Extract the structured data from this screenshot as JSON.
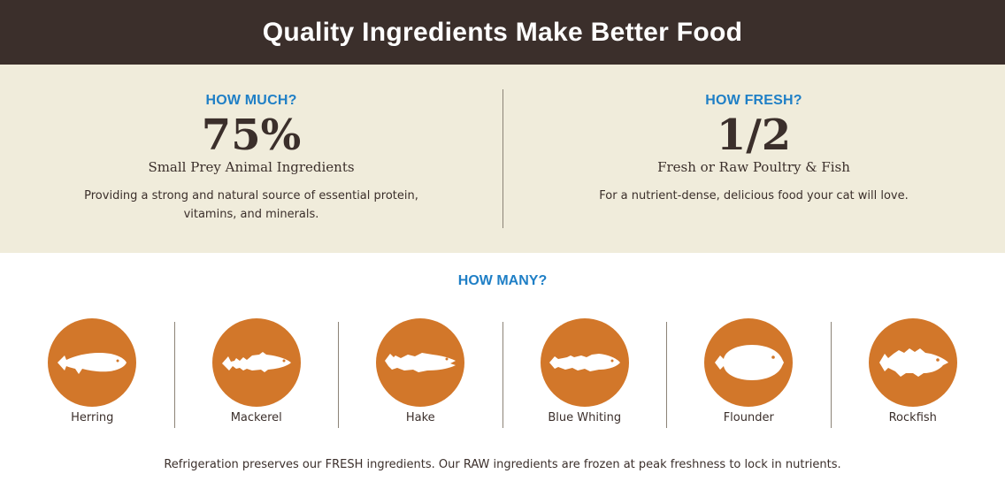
{
  "header": {
    "title": "Quality Ingredients Make Better Food"
  },
  "stats": [
    {
      "question": "HOW MUCH?",
      "value": "75%",
      "subtitle": "Small Prey Animal Ingredients",
      "description": "Providing a strong and natural source of essential protein, vitamins, and minerals."
    },
    {
      "question": "HOW FRESH?",
      "value": "1/2",
      "subtitle": "Fresh or Raw Poultry & Fish",
      "description": "For a nutrient-dense, delicious food your cat will love."
    }
  ],
  "how_many": {
    "question": "HOW MANY?",
    "fish": [
      {
        "name": "Herring",
        "icon": "herring-icon"
      },
      {
        "name": "Mackerel",
        "icon": "mackerel-icon"
      },
      {
        "name": "Hake",
        "icon": "hake-icon"
      },
      {
        "name": "Blue Whiting",
        "icon": "blue-whiting-icon"
      },
      {
        "name": "Flounder",
        "icon": "flounder-icon"
      },
      {
        "name": "Rockfish",
        "icon": "rockfish-icon"
      }
    ]
  },
  "footer": {
    "note": "Refrigeration preserves our FRESH ingredients. Our RAW ingredients are frozen at peak freshness to lock in nutrients."
  },
  "colors": {
    "header_bg": "#3b2f2b",
    "stats_bg": "#f0ecdb",
    "accent_blue": "#1f7fc6",
    "fish_orange": "#d2772a"
  }
}
